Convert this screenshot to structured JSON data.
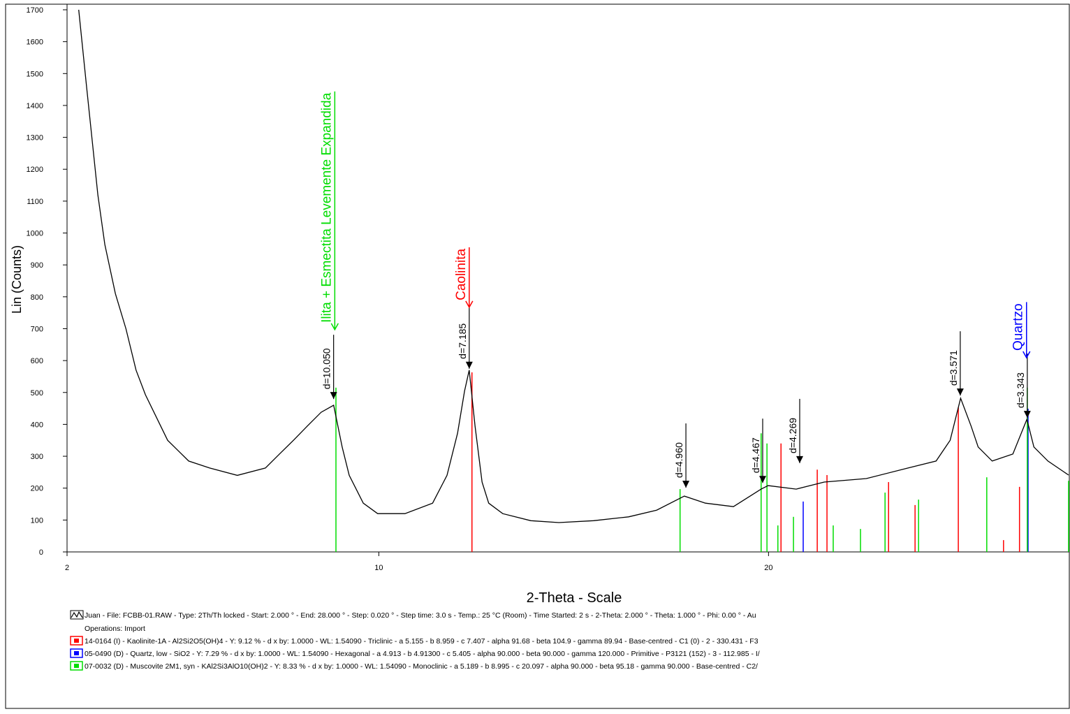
{
  "chart_data": {
    "type": "line",
    "y_label": "Lin (Counts)",
    "x_label": "2-Theta - Scale",
    "xlim": [
      2,
      27.7
    ],
    "ylim": [
      0,
      1700
    ],
    "xticks": [
      2,
      10,
      20
    ],
    "yticks": [
      0,
      100,
      200,
      300,
      400,
      500,
      600,
      700,
      800,
      900,
      1000,
      1100,
      1200,
      1300,
      1400,
      1500,
      1600,
      1700
    ],
    "series": [
      {
        "name": "Juan - File: FCBB-01.RAW - Type: 2Th/Th locked - Start: 2.000 ° - End: 28.000 ° - Step: 0.020 ° - Step time: 3.0 s - Temp.: 25 °C (Room) - Time Started: 2 s - 2-Theta: 2.000 ° - Theta: 1.000 ° - Phi: 0.00 ° - Au",
        "type": "line",
        "color": "#000000",
        "x": [
          2.3,
          2.5,
          2.79,
          2.97,
          3.24,
          3.51,
          3.77,
          4.01,
          4.58,
          5.12,
          5.66,
          6.37,
          7.09,
          7.45,
          7.81,
          8.16,
          8.52,
          8.84,
          9.06,
          9.24,
          9.6,
          9.97,
          10.67,
          11.38,
          11.75,
          12.02,
          12.2,
          12.32,
          12.47,
          12.65,
          12.82,
          13.18,
          13.9,
          14.62,
          15.51,
          16.41,
          17.13,
          17.84,
          18.38,
          19.1,
          19.81,
          19.99,
          20.71,
          21.43,
          22.51,
          23.58,
          24.3,
          24.66,
          24.93,
          25.2,
          25.38,
          25.74,
          26.27,
          26.63,
          26.81,
          27.17,
          27.7
        ],
        "values": [
          1700,
          1460,
          1120,
          964,
          810,
          700,
          570,
          493,
          350,
          285,
          263,
          240,
          263,
          307,
          350,
          394,
          438,
          460,
          329,
          240,
          153,
          120,
          120,
          153,
          240,
          372,
          504,
          570,
          394,
          219,
          153,
          120,
          98,
          92,
          98,
          110,
          131,
          175,
          153,
          142,
          197,
          208,
          197,
          219,
          230,
          263,
          285,
          350,
          482,
          394,
          329,
          285,
          307,
          416,
          329,
          285,
          241
        ]
      },
      {
        "name": "14-0164 (I) - Kaolinite-1A - Al2Si2O5(OH)4 - Y: 9.12 % - d x by: 1.0000 - WL: 1.54090 - Triclinic - a 5.155 - b 8.959 - c 7.407 - alpha 91.68 - beta 104.9 - gamma 89.94 - Base-centred - C1 (0) - 2 - 330.431 - F3",
        "type": "stick",
        "color": "#ff0000",
        "x": [
          12.39,
          20.32,
          21.25,
          21.5,
          23.08,
          23.76,
          24.87,
          26.03,
          26.44
        ],
        "values": [
          563,
          340,
          258,
          241,
          219,
          147,
          453,
          37,
          204
        ]
      },
      {
        "name": "05-0490 (D) - Quartz, low - SiO2 - Y: 7.29 % - d x by: 1.0000 - WL: 1.54090 - Hexagonal - a 4.913 - b 4.91300 - c 5.405 - alpha 90.000 - beta 90.000 - gamma 120.000 - Primitive - P3121 (152) - 3 - 112.985 - I/",
        "type": "stick",
        "color": "#0000ff",
        "x": [
          20.89,
          26.66
        ],
        "values": [
          158,
          449
        ]
      },
      {
        "name": "07-0032 (D) - Muscovite 2M1, syn - KAl2Si3AlO10(OH)2 - Y: 8.33 % - d x by: 1.0000 - WL: 1.54090 - Monoclinic - a 5.189 - b 8.995 - c 20.097 - alpha 90.000 - beta 95.18 - gamma 90.000 - Base-centred - C2/",
        "type": "stick",
        "color": "#00dd00",
        "x": [
          8.9,
          17.73,
          19.81,
          19.96,
          20.24,
          20.64,
          21.66,
          22.36,
          22.99,
          23.85,
          25.6,
          26.64,
          27.7
        ],
        "values": [
          515,
          197,
          372,
          340,
          83,
          110,
          83,
          72,
          186,
          164,
          234,
          515,
          223
        ]
      }
    ],
    "operations": "Operations: Import",
    "peak_labels": [
      {
        "label": "d=10.050",
        "x": 8.84,
        "y": 475
      },
      {
        "label": "d=7.185",
        "x": 12.32,
        "y": 570
      },
      {
        "label": "d=4.960",
        "x": 17.88,
        "y": 197
      },
      {
        "label": "d=4.467",
        "x": 19.85,
        "y": 212
      },
      {
        "label": "d=4.269",
        "x": 20.8,
        "y": 274
      },
      {
        "label": "d=3.571",
        "x": 24.92,
        "y": 486
      },
      {
        "label": "d=3.343",
        "x": 26.64,
        "y": 416
      }
    ],
    "phase_labels": [
      {
        "label": "Ilita + Esmectita Levemente Expandida",
        "x": 8.87,
        "y": 697,
        "color": "#00dd00"
      },
      {
        "label": "Caolinita",
        "x": 12.32,
        "y": 767,
        "color": "#ff0000"
      },
      {
        "label": "Quartzo",
        "x": 26.62,
        "y": 609,
        "color": "#0000ff"
      }
    ]
  }
}
